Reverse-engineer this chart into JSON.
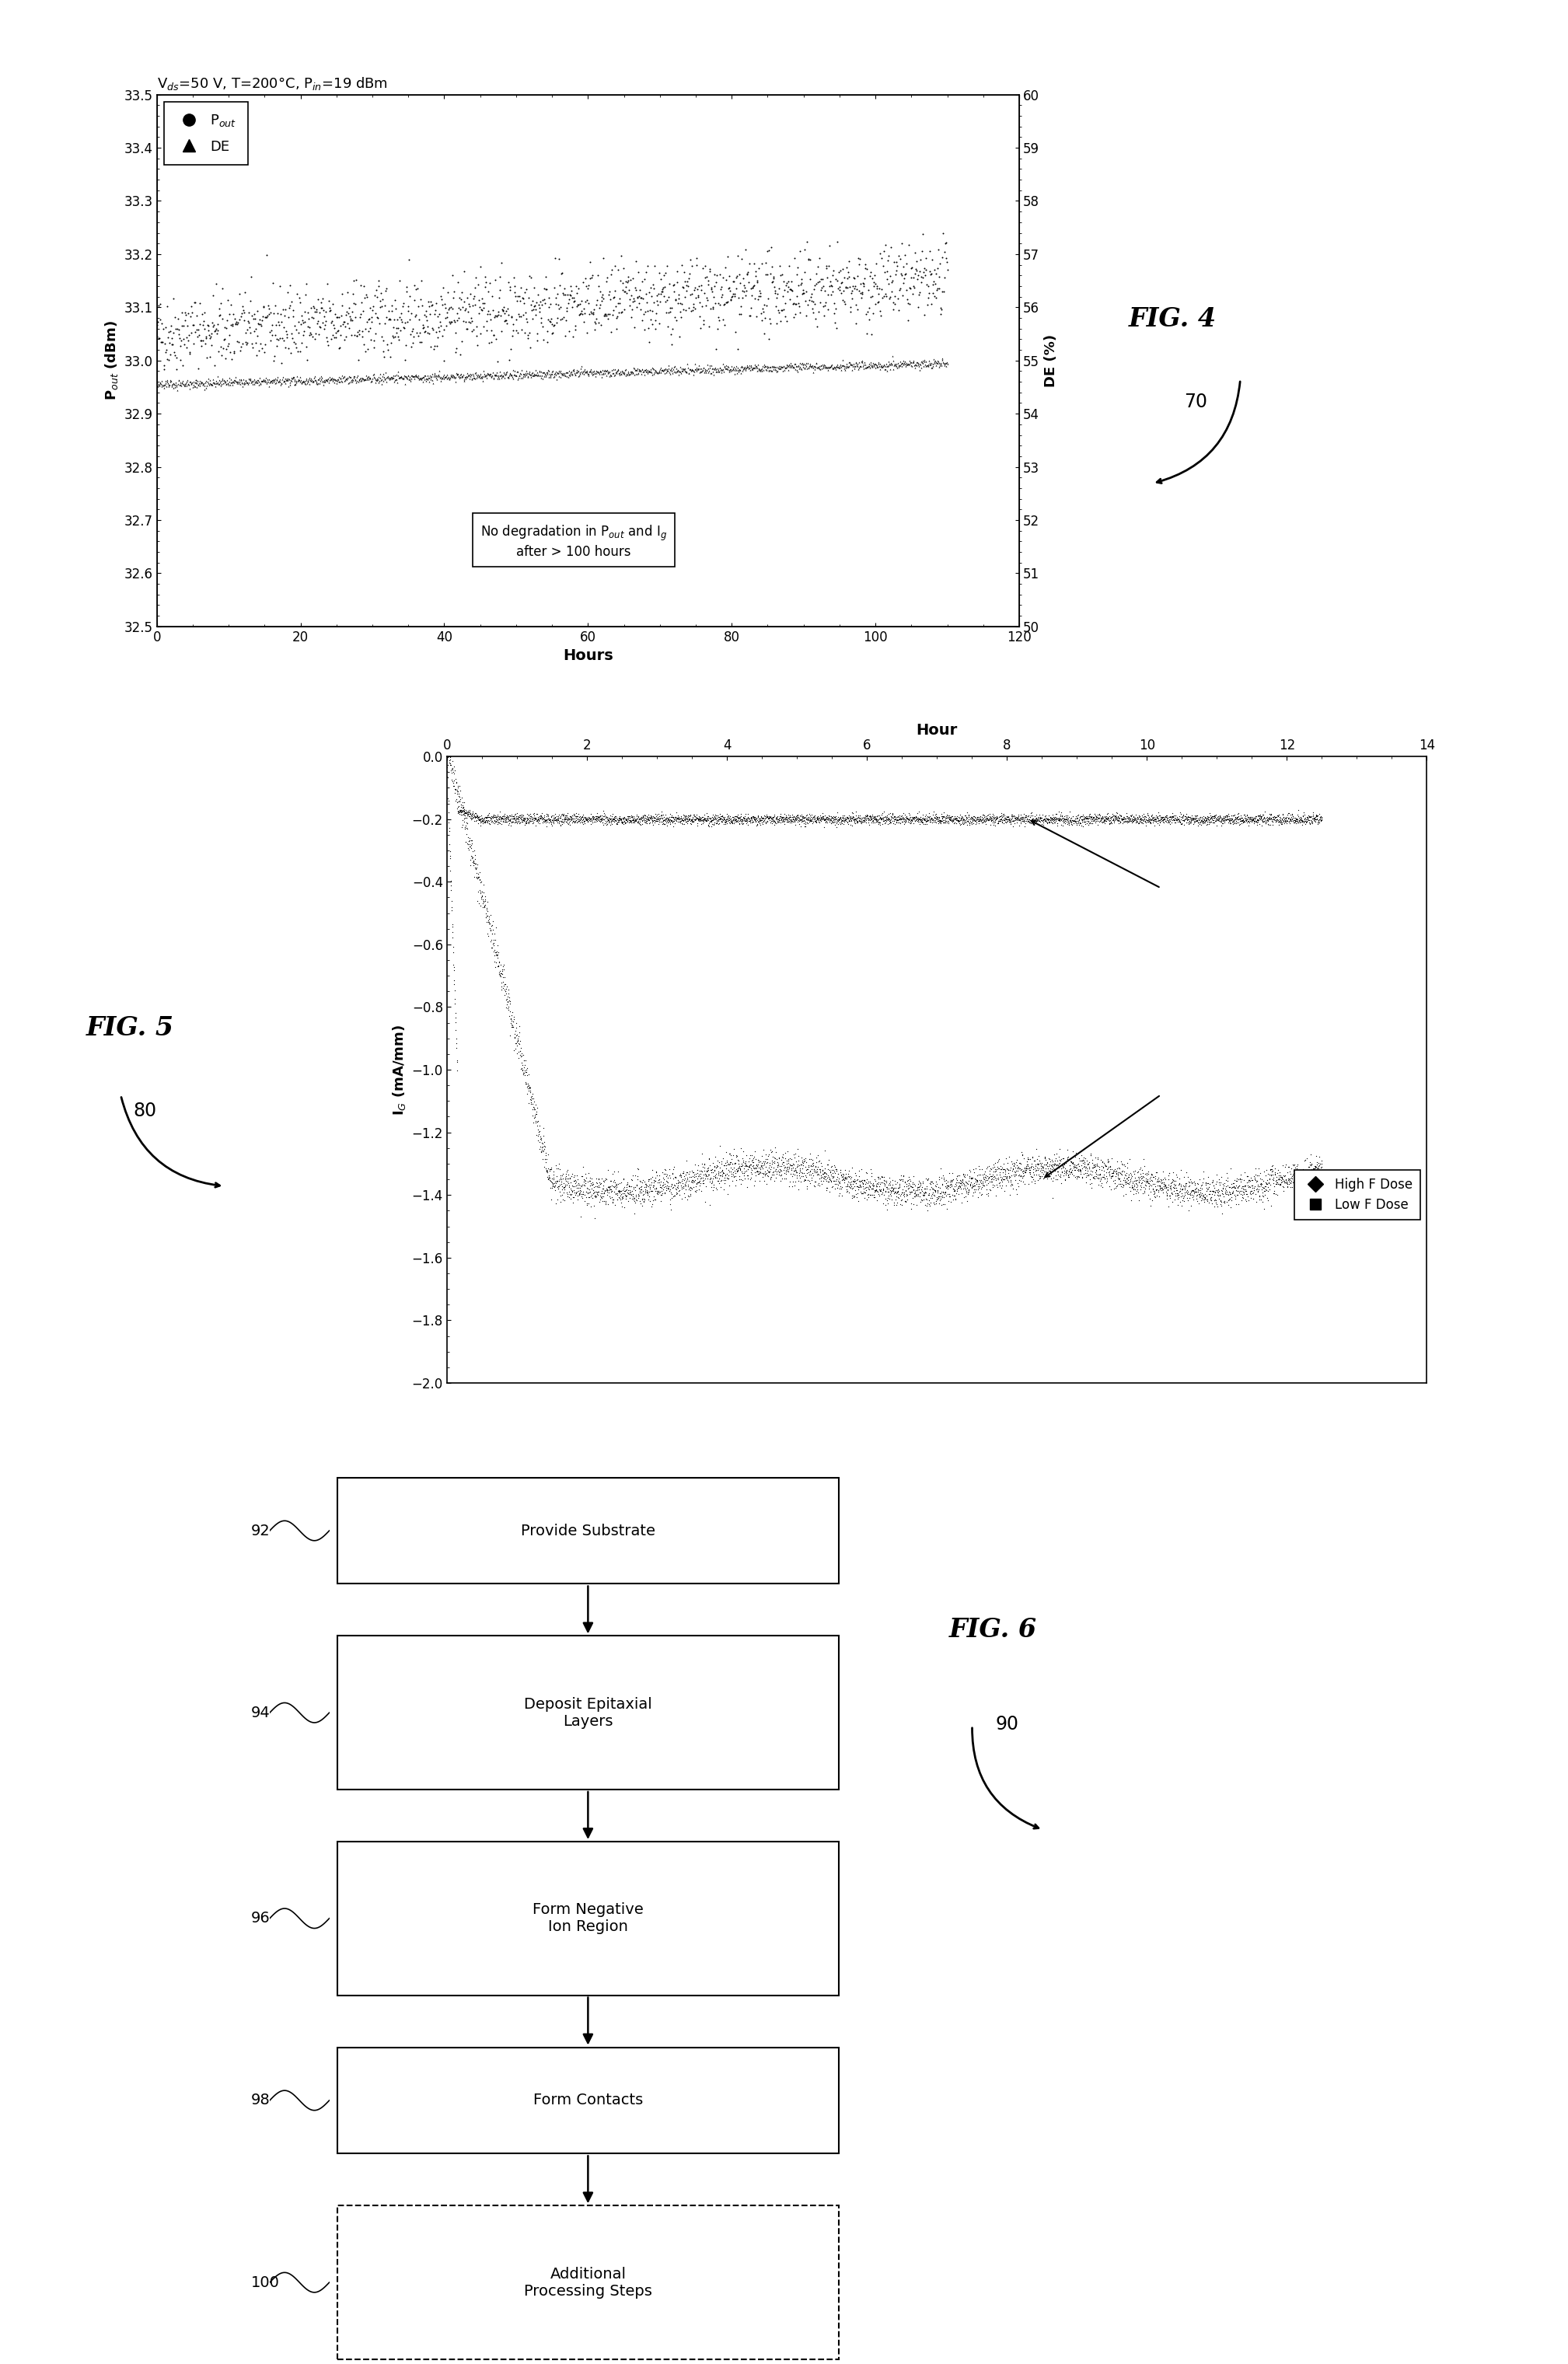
{
  "fig4": {
    "title": "V$_{ds}$=50 V, T=200°C, P$_{in}$=19 dBm",
    "xlabel": "Hours",
    "ylabel_left": "P$_{out}$ (dBm)",
    "ylabel_right": "DE (%)",
    "xlim": [
      0,
      120
    ],
    "ylim_left": [
      32.5,
      33.5
    ],
    "ylim_right": [
      50,
      60
    ],
    "xticks": [
      0,
      20,
      40,
      60,
      80,
      100,
      120
    ],
    "yticks_left": [
      32.5,
      32.6,
      32.7,
      32.8,
      32.9,
      33.0,
      33.1,
      33.2,
      33.3,
      33.4,
      33.5
    ],
    "yticks_right": [
      50,
      51,
      52,
      53,
      54,
      55,
      56,
      57,
      58,
      59,
      60
    ],
    "annotation": "No degradation in P$_{out}$ and I$_g$\nafter > 100 hours",
    "fig_label": "FIG. 4",
    "fig_number": "70",
    "pout_start": 33.05,
    "pout_end": 33.15,
    "pout_noise": 0.035,
    "de_start": 54.55,
    "de_end": 54.95,
    "de_noise": 0.04
  },
  "fig5": {
    "xlabel": "Hour",
    "ylabel": "I$_G$ (mA/mm)",
    "xlim": [
      0,
      14
    ],
    "ylim": [
      -2,
      0
    ],
    "xticks": [
      0,
      2,
      4,
      6,
      8,
      10,
      12,
      14
    ],
    "yticks": [
      0,
      -0.2,
      -0.4,
      -0.6,
      -0.8,
      -1.0,
      -1.2,
      -1.4,
      -1.6,
      -1.8,
      -2.0
    ],
    "legend_high": "High F Dose",
    "legend_low": "Low F Dose",
    "fig_label": "FIG. 5",
    "fig_number": "80"
  },
  "fig6": {
    "fig_label": "FIG. 6",
    "fig_number": "90",
    "boxes": [
      {
        "label": "Provide Substrate",
        "number": "92",
        "dashed": false
      },
      {
        "label": "Deposit Epitaxial\nLayers",
        "number": "94",
        "dashed": false
      },
      {
        "label": "Form Negative\nIon Region",
        "number": "96",
        "dashed": false
      },
      {
        "label": "Form Contacts",
        "number": "98",
        "dashed": false
      },
      {
        "label": "Additional\nProcessing Steps",
        "number": "100",
        "dashed": true
      }
    ]
  },
  "background_color": "#ffffff"
}
